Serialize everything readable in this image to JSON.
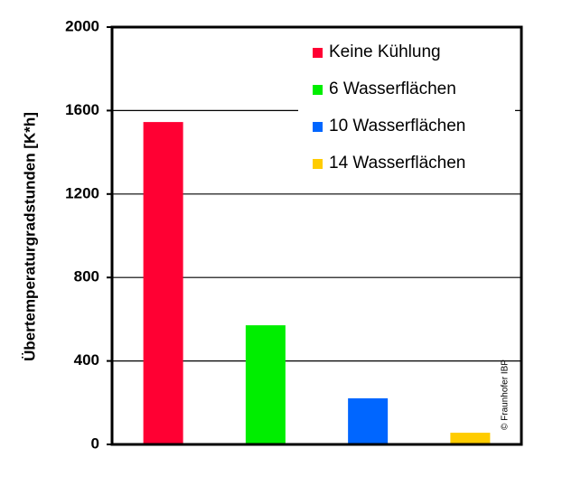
{
  "chart_data": {
    "type": "bar",
    "y_label": "Übertemperaturgradstunden [K*h]",
    "annotation": "© Fraunhofer IBP",
    "series": [
      {
        "name": "Keine Kühlung",
        "color": "#ff0033",
        "values": [
          1545
        ]
      },
      {
        "name": "6 Wasserflächen",
        "color": "#00ee00",
        "values": [
          571
        ]
      },
      {
        "name": "10 Wasserflächen",
        "color": "#0066ff",
        "values": [
          221
        ]
      },
      {
        "name": "14 Wasserflächen",
        "color": "#ffcc00",
        "values": [
          56
        ]
      }
    ],
    "ylim": [
      0,
      2000
    ],
    "yticks": [
      0,
      400,
      800,
      1200,
      1600,
      2000
    ],
    "grid": true,
    "legend": "top-right"
  }
}
